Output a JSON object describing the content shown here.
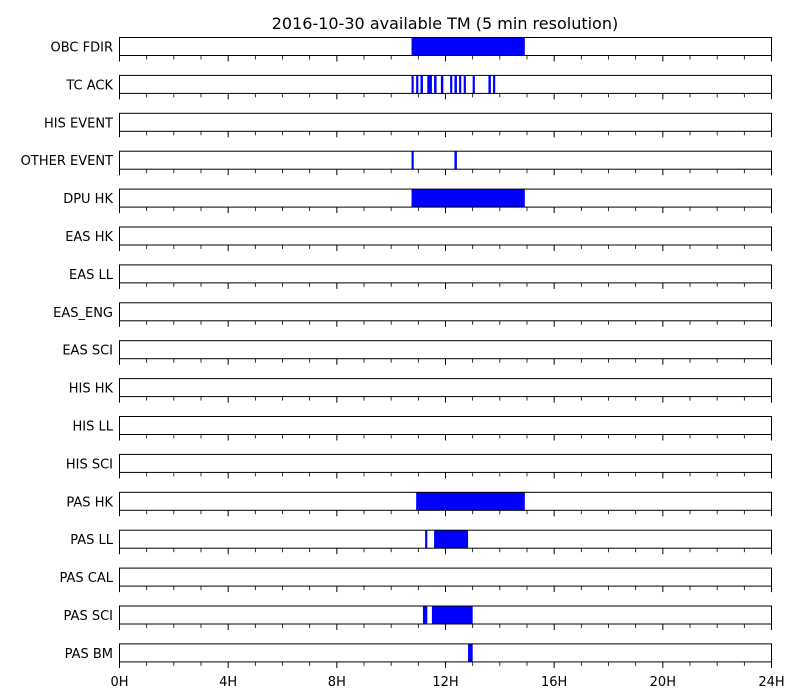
{
  "chart_data": {
    "type": "timeline",
    "title": "2016-10-30 available TM (5 min resolution)",
    "xlabel": "",
    "ylabel": "",
    "x_unit": "hours",
    "xlim": [
      0,
      24
    ],
    "x_ticks": [
      {
        "value": 0,
        "label": "0H"
      },
      {
        "value": 4,
        "label": "4H"
      },
      {
        "value": 8,
        "label": "8H"
      },
      {
        "value": 12,
        "label": "12H"
      },
      {
        "value": 16,
        "label": "16H"
      },
      {
        "value": 20,
        "label": "20H"
      },
      {
        "value": 24,
        "label": "24H"
      }
    ],
    "minor_tick_step_hours": 1,
    "bar_color": "#0000ff",
    "series": [
      {
        "name": "OBC FDIR",
        "intervals": [
          [
            10.75,
            14.92
          ]
        ]
      },
      {
        "name": "TC ACK",
        "intervals": [
          [
            10.75,
            10.83
          ],
          [
            10.92,
            11.0
          ],
          [
            11.08,
            11.17
          ],
          [
            11.33,
            11.5
          ],
          [
            11.58,
            11.67
          ],
          [
            11.83,
            11.92
          ],
          [
            12.17,
            12.25
          ],
          [
            12.33,
            12.42
          ],
          [
            12.5,
            12.58
          ],
          [
            12.67,
            12.75
          ],
          [
            13.0,
            13.08
          ],
          [
            13.58,
            13.67
          ],
          [
            13.75,
            13.83
          ]
        ]
      },
      {
        "name": "HIS EVENT",
        "intervals": []
      },
      {
        "name": "OTHER EVENT",
        "intervals": [
          [
            10.75,
            10.83
          ],
          [
            12.33,
            12.42
          ]
        ]
      },
      {
        "name": "DPU HK",
        "intervals": [
          [
            10.75,
            14.92
          ]
        ]
      },
      {
        "name": "EAS HK",
        "intervals": []
      },
      {
        "name": "EAS LL",
        "intervals": []
      },
      {
        "name": "EAS_ENG",
        "intervals": []
      },
      {
        "name": "EAS SCI",
        "intervals": []
      },
      {
        "name": "HIS HK",
        "intervals": []
      },
      {
        "name": "HIS LL",
        "intervals": []
      },
      {
        "name": "HIS SCI",
        "intervals": []
      },
      {
        "name": "PAS HK",
        "intervals": [
          [
            10.92,
            14.92
          ]
        ]
      },
      {
        "name": "PAS LL",
        "intervals": [
          [
            11.25,
            11.33
          ],
          [
            11.58,
            12.83
          ]
        ]
      },
      {
        "name": "PAS CAL",
        "intervals": []
      },
      {
        "name": "PAS SCI",
        "intervals": [
          [
            11.17,
            11.33
          ],
          [
            11.5,
            13.0
          ]
        ]
      },
      {
        "name": "PAS BM",
        "intervals": [
          [
            12.83,
            13.0
          ]
        ]
      }
    ]
  }
}
